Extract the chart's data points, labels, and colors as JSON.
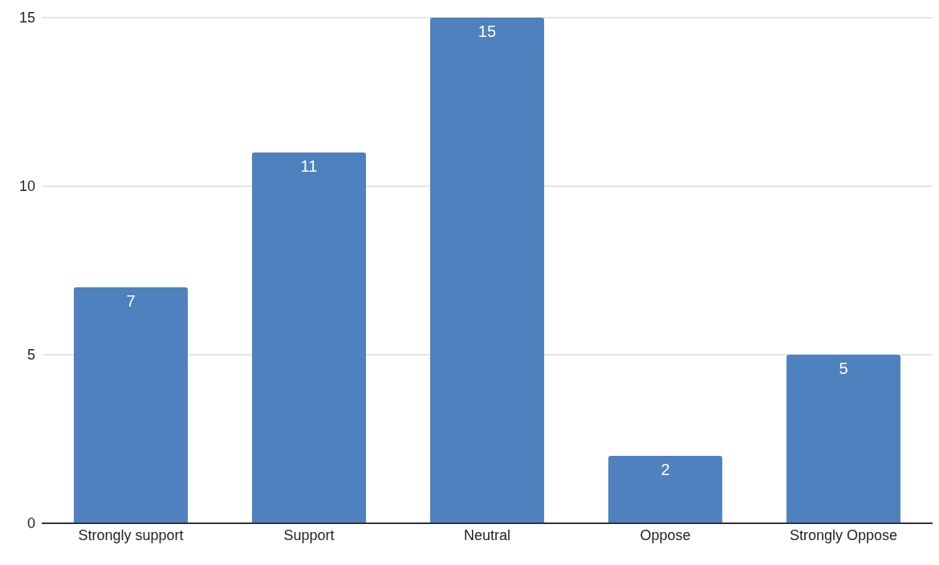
{
  "chart_data": {
    "type": "bar",
    "categories": [
      "Strongly support",
      "Support",
      "Neutral",
      "Oppose",
      "Strongly Oppose"
    ],
    "values": [
      7,
      11,
      15,
      2,
      5
    ],
    "color": "#4e81bd",
    "ylim": [
      0,
      15
    ],
    "yticks": [
      0,
      5,
      10,
      15
    ],
    "grid": "y",
    "data_labels": true
  }
}
